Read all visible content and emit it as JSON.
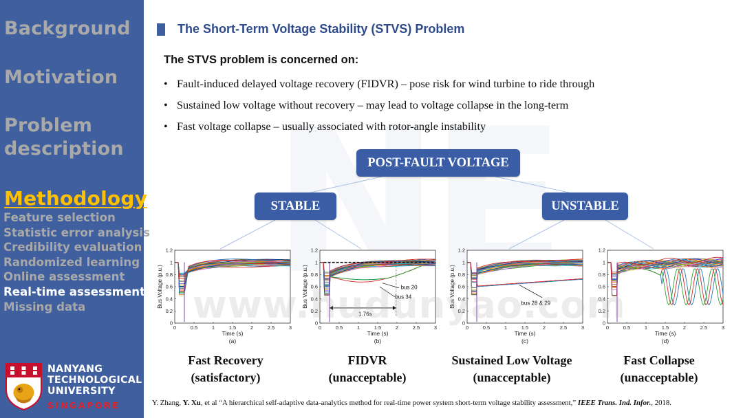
{
  "sidebar": {
    "background": "Background",
    "motivation": "Motivation",
    "problem_line1": "Problem",
    "problem_line2": "description",
    "methodology": "Methodology",
    "sub_items": [
      "Feature selection",
      "Statistic error analysis",
      "Credibility evaluation",
      "Randomized learning",
      "Online assessment",
      "Real-time assessment",
      "Missing data"
    ],
    "current_sub_index": 5,
    "university": {
      "line1": "NANYANG",
      "line2": "TECHNOLOGICAL",
      "line3": "UNIVERSITY",
      "line4": "SINGAPORE"
    }
  },
  "slide": {
    "title": "The Short-Term Voltage Stability (STVS) Problem",
    "intro": "The STVS problem is concerned on:",
    "bullets": [
      "Fault-induced delayed voltage recovery (FIDVR) – pose risk for wind turbine to ride through",
      "Sustained low voltage without recovery – may lead to voltage collapse in the long-term",
      "Fast voltage collapse – usually associated with rotor-angle instability"
    ],
    "watermark_url": "www.hudunyao.com",
    "tree": {
      "root": "POST-FAULT VOLTAGE",
      "left": "STABLE",
      "right": "UNSTABLE"
    },
    "captions": [
      {
        "line1": "Fast Recovery",
        "line2": "(satisfactory)"
      },
      {
        "line1": "FIDVR",
        "line2": "(unacceptable)"
      },
      {
        "line1": "Sustained Low Voltage",
        "line2": "(unacceptable)"
      },
      {
        "line1": "Fast Collapse",
        "line2": "(unacceptable)"
      }
    ],
    "reference": {
      "authors_a": "Y. Zhang, ",
      "author_b": "Y. Xu",
      "authors_c": ", et al “A hierarchical  self-adaptive data-analytics method for real-time  power system short-term voltage stability assessment,” ",
      "journal": "IEEE Trans. Ind. Infor.",
      "year": ", 2018."
    }
  },
  "colors": {
    "sidebar": "#3f5f9e",
    "nav_inactive": "#a9a9a9",
    "nav_active": "#ffc000",
    "pill": "#3b5da6",
    "title": "#2e4a8a"
  },
  "chart_data": [
    {
      "type": "line",
      "panel_label": "(a)",
      "xlabel": "Time (s)",
      "ylabel": "Bus Voltage (p.u.)",
      "xlim": [
        0,
        3
      ],
      "ylim": [
        0,
        1.2
      ],
      "x_ticks": [
        "0",
        "0.5",
        "1",
        "1.5",
        "2",
        "2.5",
        "3"
      ],
      "y_ticks": [
        "0",
        "0.2",
        "0.4",
        "0.6",
        "0.8",
        "1",
        "1.2"
      ],
      "annotations": []
    },
    {
      "type": "line",
      "panel_label": "(b)",
      "xlabel": "Time (s)",
      "ylabel": "Bus Voltage (p.u.)",
      "xlim": [
        0,
        3
      ],
      "ylim": [
        0,
        1.2
      ],
      "x_ticks": [
        "0",
        "0.5",
        "1",
        "1.5",
        "2",
        "2.5",
        "3"
      ],
      "y_ticks": [
        "0",
        "0.2",
        "0.4",
        "0.6",
        "0.8",
        "1",
        "1.2"
      ],
      "annotations": [
        "bus 20",
        "bus 34",
        "1.76s"
      ]
    },
    {
      "type": "line",
      "panel_label": "(c)",
      "xlabel": "Time (s)",
      "ylabel": "Bus Voltage (p.u.)",
      "xlim": [
        0,
        3
      ],
      "ylim": [
        0,
        1.2
      ],
      "x_ticks": [
        "0",
        "0.5",
        "1",
        "1.5",
        "2",
        "2.5",
        "3"
      ],
      "y_ticks": [
        "0",
        "0.2",
        "0.4",
        "0.6",
        "0.8",
        "1",
        "1.2"
      ],
      "annotations": [
        "bus 28 & 29"
      ]
    },
    {
      "type": "line",
      "panel_label": "(d)",
      "xlabel": "Time (s)",
      "ylabel": "",
      "xlim": [
        0,
        3
      ],
      "ylim": [
        0,
        1.2
      ],
      "x_ticks": [
        "0",
        "0.5",
        "1",
        "1.5",
        "2",
        "2.5",
        "3"
      ],
      "y_ticks": [
        "0",
        "0.2",
        "0.4",
        "0.6",
        "0.8",
        "1",
        "1.2"
      ],
      "annotations": []
    }
  ]
}
